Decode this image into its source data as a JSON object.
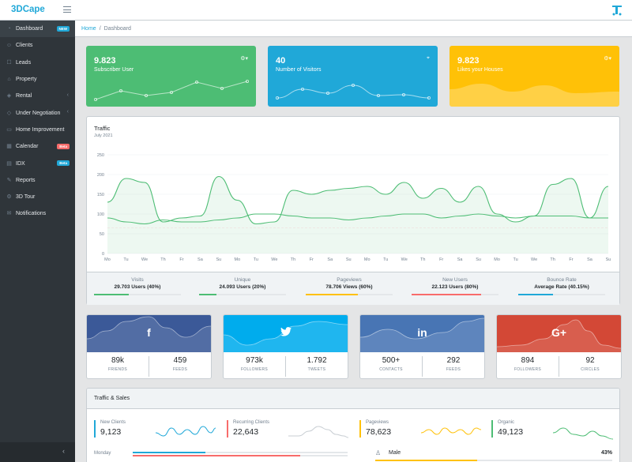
{
  "header": {
    "brand": "3DCape"
  },
  "sidebar": {
    "items": [
      {
        "label": "Dashboard",
        "badge": "NEW",
        "icon": "speedometer-icon"
      },
      {
        "label": "Clients",
        "icon": "people-icon"
      },
      {
        "label": "Leads",
        "icon": "leads-icon"
      },
      {
        "label": "Property",
        "icon": "home-icon"
      },
      {
        "label": "Rental",
        "icon": "rental-icon"
      },
      {
        "label": "Under Negotiation",
        "icon": "negotiation-icon"
      },
      {
        "label": "Home Improvement",
        "icon": "improvement-icon"
      },
      {
        "label": "Calendar",
        "badge": "Beta",
        "icon": "calendar-icon"
      },
      {
        "label": "IDX",
        "badge": "Beta",
        "icon": "idx-icon"
      },
      {
        "label": "Reports",
        "icon": "reports-icon"
      },
      {
        "label": "3D Tour",
        "icon": "tour-icon"
      },
      {
        "label": "Notifications",
        "icon": "mail-icon"
      }
    ]
  },
  "breadcrumb": {
    "home": "Home",
    "current": "Dashboard"
  },
  "stats": [
    {
      "value": "9.823",
      "label": "Subscriber User",
      "color": "#4dbd74"
    },
    {
      "value": "40",
      "label": "Number of Visitors",
      "color": "#20a8d8"
    },
    {
      "value": "9.823",
      "label": "Likes your Houses",
      "color": "#ffc107"
    }
  ],
  "traffic": {
    "title": "Traffic",
    "subtitle": "July 2021",
    "footer": [
      {
        "label": "Visits",
        "value": "29.703 Users (40%)",
        "percent": 40,
        "color": "#4dbd74"
      },
      {
        "label": "Unique",
        "value": "24.093 Users (20%)",
        "percent": 20,
        "color": "#4dbd74"
      },
      {
        "label": "Pageviews",
        "value": "78.706 Views (60%)",
        "percent": 60,
        "color": "#ffc107"
      },
      {
        "label": "New Users",
        "value": "22.123 Users (80%)",
        "percent": 80,
        "color": "#f86c6b"
      },
      {
        "label": "Bounce Rate",
        "value": "Average Rate (40.15%)",
        "percent": 40,
        "color": "#20a8d8"
      }
    ]
  },
  "chart_data": {
    "type": "line",
    "x": [
      "Mo",
      "Tu",
      "We",
      "Th",
      "Fr",
      "Sa",
      "Su",
      "Mo",
      "Tu",
      "We",
      "Th",
      "Fr",
      "Sa",
      "Su",
      "Mo",
      "Tu",
      "We",
      "Th",
      "Fr",
      "Sa",
      "Su",
      "Mo",
      "Tu",
      "We",
      "Th",
      "Fr",
      "Sa",
      "Su"
    ],
    "ylim": [
      0,
      250
    ],
    "yticks": [
      "0",
      "50",
      "100",
      "150",
      "200",
      "250"
    ],
    "series": [
      {
        "values": [
          130,
          190,
          180,
          80,
          90,
          95,
          195,
          135,
          75,
          80,
          160,
          150,
          160,
          165,
          170,
          150,
          180,
          140,
          165,
          130,
          170,
          100,
          80,
          95,
          175,
          190,
          90,
          170
        ]
      },
      {
        "values": [
          90,
          80,
          75,
          85,
          80,
          80,
          85,
          90,
          100,
          100,
          95,
          90,
          90,
          85,
          90,
          95,
          100,
          100,
          90,
          95,
          100,
          95,
          90,
          95,
          95,
          95,
          90,
          90
        ]
      },
      {
        "values": [
          65,
          65,
          65,
          65,
          65,
          65,
          65,
          65,
          65,
          65,
          65,
          65,
          65,
          65,
          65,
          65,
          65,
          65,
          65,
          65,
          65,
          65,
          65,
          65,
          65,
          65,
          65,
          65
        ]
      }
    ]
  },
  "social": [
    {
      "network": "f",
      "color": "#3b5998",
      "a_num": "89k",
      "a_lbl": "FRIENDS",
      "b_num": "459",
      "b_lbl": "FEEDS",
      "icon": "facebook-icon"
    },
    {
      "network": "🐦",
      "color": "#00aced",
      "a_num": "973k",
      "a_lbl": "FOLLOWERS",
      "b_num": "1.792",
      "b_lbl": "TWEETS",
      "icon": "twitter-icon"
    },
    {
      "network": "in",
      "color": "#4875b4",
      "a_num": "500+",
      "a_lbl": "CONTACTS",
      "b_num": "292",
      "b_lbl": "FEEDS",
      "icon": "linkedin-icon"
    },
    {
      "network": "G+",
      "color": "#d34836",
      "a_num": "894",
      "a_lbl": "FOLLOWERS",
      "b_num": "92",
      "b_lbl": "CIRCLES",
      "icon": "google-plus-icon"
    }
  ],
  "sales": {
    "title": "Traffic & Sales",
    "items": [
      {
        "label": "New Clients",
        "value": "9,123",
        "color": "#20a8d8"
      },
      {
        "label": "Recurring Clients",
        "value": "22,643",
        "color": "#f86c6b"
      },
      {
        "label": "Pageviews",
        "value": "78,623",
        "color": "#ffc107"
      },
      {
        "label": "Organic",
        "value": "49,123",
        "color": "#4dbd74"
      }
    ],
    "day": "Monday",
    "gender_label": "Male",
    "gender_pct": "43%"
  }
}
